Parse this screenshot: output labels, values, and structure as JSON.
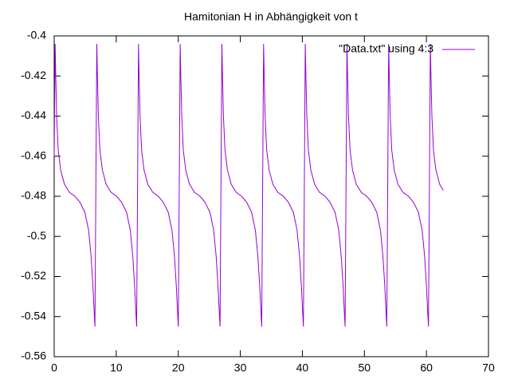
{
  "chart_data": {
    "type": "line",
    "title": "Hamitonian H in Abhängigkeit von t",
    "xlim": [
      0,
      70
    ],
    "xticks": [
      0,
      10,
      20,
      30,
      40,
      50,
      60,
      70
    ],
    "ylim": [
      -0.56,
      -0.4
    ],
    "yticks": [
      -0.56,
      -0.54,
      -0.52,
      -0.5,
      -0.48,
      -0.46,
      -0.44,
      -0.42,
      -0.4
    ],
    "legend": "top-right",
    "series": [
      {
        "name": "\"Data.txt\" using 4:3",
        "color": "#9400d3",
        "x": [
          0,
          0.15,
          0.25,
          0.4,
          0.65,
          1.05,
          1.65,
          2.45,
          3.35,
          4.15,
          4.95,
          5.55,
          5.95,
          6.25,
          6.45,
          6.57,
          6.87,
          6.97,
          7.12,
          7.37,
          7.77,
          8.37,
          9.17,
          10.07,
          10.87,
          11.67,
          12.27,
          12.67,
          12.97,
          13.17,
          13.29,
          13.59,
          13.69,
          13.84,
          14.09,
          14.49,
          15.09,
          15.89,
          16.79,
          17.59,
          18.39,
          18.99,
          19.39,
          19.69,
          19.89,
          20.01,
          20.31,
          20.41,
          20.56,
          20.81,
          21.21,
          21.81,
          22.61,
          23.51,
          24.31,
          25.11,
          25.71,
          26.11,
          26.41,
          26.61,
          26.73,
          27.03,
          27.13,
          27.28,
          27.53,
          27.93,
          28.53,
          29.33,
          30.23,
          31.03,
          31.83,
          32.43,
          32.83,
          33.13,
          33.33,
          33.45,
          33.75,
          33.85,
          34.0,
          34.25,
          34.65,
          35.25,
          36.05,
          36.95,
          37.75,
          38.55,
          39.15,
          39.55,
          39.85,
          40.05,
          40.17,
          40.47,
          40.57,
          40.72,
          40.97,
          41.37,
          41.97,
          42.77,
          43.67,
          44.47,
          45.27,
          45.87,
          46.27,
          46.57,
          46.77,
          46.89,
          47.19,
          47.29,
          47.44,
          47.69,
          48.09,
          48.69,
          49.49,
          50.39,
          51.19,
          51.99,
          52.59,
          52.99,
          53.29,
          53.49,
          53.61,
          53.91,
          54.01,
          54.16,
          54.41,
          54.81,
          55.41,
          56.21,
          57.11,
          57.91,
          58.71,
          59.31,
          59.71,
          60.01,
          60.21,
          60.33,
          60.63,
          60.73,
          60.88,
          61.13,
          61.53,
          62.13,
          62.7
        ],
        "values": [
          -0.46,
          -0.404,
          -0.42,
          -0.44,
          -0.457,
          -0.467,
          -0.474,
          -0.478,
          -0.48,
          -0.483,
          -0.488,
          -0.497,
          -0.51,
          -0.525,
          -0.538,
          -0.545,
          -0.404,
          -0.42,
          -0.44,
          -0.457,
          -0.467,
          -0.474,
          -0.478,
          -0.48,
          -0.483,
          -0.488,
          -0.497,
          -0.51,
          -0.525,
          -0.538,
          -0.545,
          -0.404,
          -0.42,
          -0.44,
          -0.457,
          -0.467,
          -0.474,
          -0.478,
          -0.48,
          -0.483,
          -0.488,
          -0.497,
          -0.51,
          -0.525,
          -0.538,
          -0.545,
          -0.404,
          -0.42,
          -0.44,
          -0.457,
          -0.467,
          -0.474,
          -0.478,
          -0.48,
          -0.483,
          -0.488,
          -0.497,
          -0.51,
          -0.525,
          -0.538,
          -0.545,
          -0.404,
          -0.42,
          -0.44,
          -0.457,
          -0.467,
          -0.474,
          -0.478,
          -0.48,
          -0.483,
          -0.488,
          -0.497,
          -0.51,
          -0.525,
          -0.538,
          -0.545,
          -0.404,
          -0.42,
          -0.44,
          -0.457,
          -0.467,
          -0.474,
          -0.478,
          -0.48,
          -0.483,
          -0.488,
          -0.497,
          -0.51,
          -0.525,
          -0.538,
          -0.545,
          -0.404,
          -0.42,
          -0.44,
          -0.457,
          -0.467,
          -0.474,
          -0.478,
          -0.48,
          -0.483,
          -0.488,
          -0.497,
          -0.51,
          -0.525,
          -0.538,
          -0.545,
          -0.404,
          -0.42,
          -0.44,
          -0.457,
          -0.467,
          -0.474,
          -0.478,
          -0.48,
          -0.483,
          -0.488,
          -0.497,
          -0.51,
          -0.525,
          -0.538,
          -0.545,
          -0.404,
          -0.42,
          -0.44,
          -0.457,
          -0.467,
          -0.474,
          -0.478,
          -0.48,
          -0.483,
          -0.488,
          -0.497,
          -0.51,
          -0.525,
          -0.538,
          -0.545,
          -0.404,
          -0.42,
          -0.44,
          -0.457,
          -0.467,
          -0.474,
          -0.477
        ]
      }
    ]
  }
}
